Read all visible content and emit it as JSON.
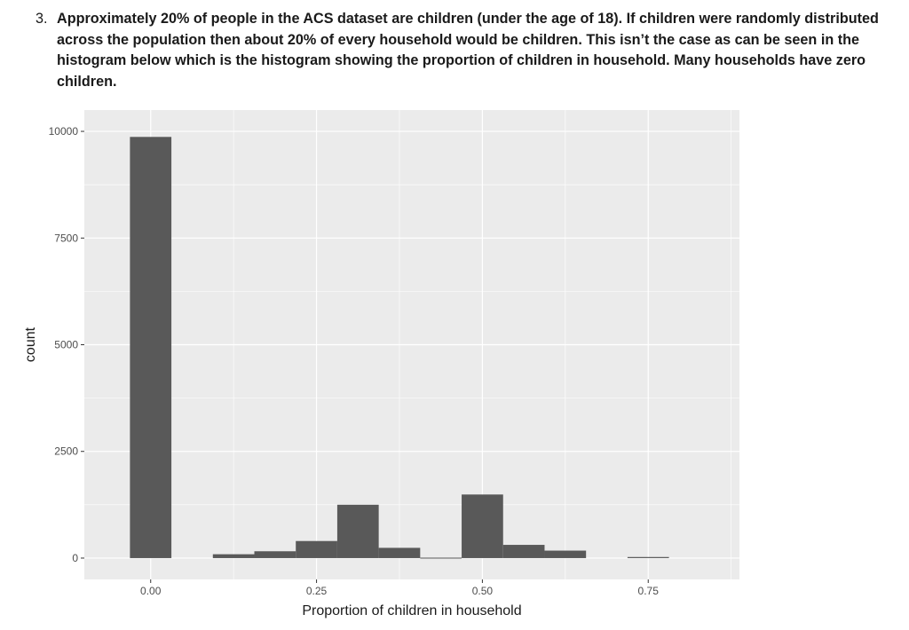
{
  "question": {
    "number": "3.",
    "text": "Approximately 20% of people in the ACS dataset are children (under the age of 18). If children were randomly distributed across the population then about 20% of every household would be children. This isn’t the case as can be seen in the histogram below which is the histogram showing the proportion of children in household. Many households have zero children."
  },
  "chart_data": {
    "type": "bar",
    "title": "",
    "xlabel": "Proportion of children in household",
    "ylabel": "count",
    "xlim": [
      -0.1,
      0.8875
    ],
    "ylim": [
      -500,
      10500
    ],
    "x_ticks": [
      0,
      0.25,
      0.5,
      0.75
    ],
    "x_tick_labels": [
      "0.00",
      "0.25",
      "0.50",
      "0.75"
    ],
    "y_ticks": [
      0,
      2500,
      5000,
      7500,
      10000
    ],
    "y_tick_labels": [
      "0",
      "2500",
      "5000",
      "7500",
      "10000"
    ],
    "grid": true,
    "bin_width": 0.0625,
    "bins": [
      {
        "x": 0.0,
        "count": 9870
      },
      {
        "x": 0.0625,
        "count": 0
      },
      {
        "x": 0.125,
        "count": 90
      },
      {
        "x": 0.1875,
        "count": 160
      },
      {
        "x": 0.25,
        "count": 400
      },
      {
        "x": 0.3125,
        "count": 1250
      },
      {
        "x": 0.375,
        "count": 240
      },
      {
        "x": 0.4375,
        "count": 10
      },
      {
        "x": 0.5,
        "count": 1490
      },
      {
        "x": 0.5625,
        "count": 310
      },
      {
        "x": 0.625,
        "count": 175
      },
      {
        "x": 0.6875,
        "count": 0
      },
      {
        "x": 0.75,
        "count": 25
      }
    ],
    "colors": {
      "bar": "#595959",
      "panel": "#ebebeb",
      "grid": "#ffffff",
      "tick": "#333333"
    }
  }
}
